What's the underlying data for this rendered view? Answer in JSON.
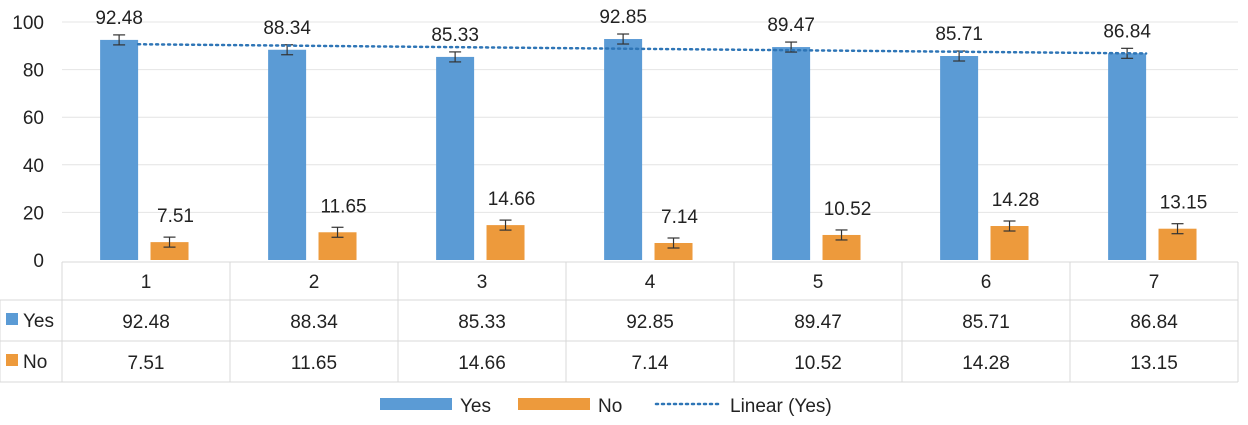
{
  "chart_data": {
    "type": "bar",
    "categories": [
      "1",
      "2",
      "3",
      "4",
      "5",
      "6",
      "7"
    ],
    "series": [
      {
        "name": "Yes",
        "values": [
          92.48,
          88.34,
          85.33,
          92.85,
          89.47,
          85.71,
          86.84
        ],
        "color": "#5B9BD5"
      },
      {
        "name": "No",
        "values": [
          7.51,
          11.65,
          14.66,
          7.14,
          10.52,
          14.28,
          13.15
        ],
        "color": "#ED9A3C"
      }
    ],
    "data_labels": {
      "yes": [
        "92.48",
        "88.34",
        "85.33",
        "92.85",
        "89.47",
        "85.71",
        "86.84"
      ],
      "no": [
        "7.51",
        "11.65",
        "14.66",
        "7.14",
        "10.52",
        "14.28",
        "13.15"
      ]
    },
    "yticks": [
      "0",
      "20",
      "40",
      "60",
      "80",
      "100"
    ],
    "ylim": [
      0,
      100
    ],
    "trendline": {
      "label": "Linear (Yes)",
      "series": "Yes",
      "style": "dotted",
      "color": "#2E75B6"
    },
    "error_bars": true,
    "data_table": true,
    "legend": {
      "position": "bottom",
      "entries": [
        "Yes",
        "No",
        "Linear (Yes)"
      ]
    },
    "grid": true
  }
}
